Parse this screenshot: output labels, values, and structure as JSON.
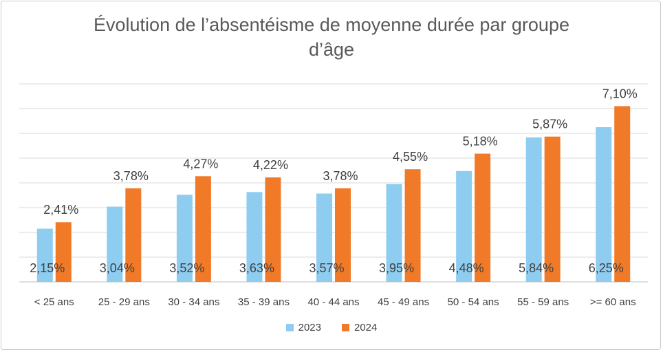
{
  "chart_data": {
    "type": "bar",
    "title_line1": "Évolution de l’absentéisme de moyenne durée par groupe",
    "title_line2": "d’âge",
    "categories": [
      "< 25 ans",
      "25 - 29 ans",
      "30 - 34 ans",
      "35 - 39 ans",
      "40 - 44 ans",
      "45 - 49 ans",
      "50 - 54 ans",
      "55 - 59 ans",
      ">= 60 ans"
    ],
    "series": [
      {
        "name": "2023",
        "color": "#8fcdf0",
        "values": [
          2.15,
          3.04,
          3.52,
          3.63,
          3.57,
          3.95,
          4.48,
          5.84,
          6.25
        ],
        "labels": [
          "2,15%",
          "3,04%",
          "3,52%",
          "3,63%",
          "3,57%",
          "3,95%",
          "4,48%",
          "5,84%",
          "6,25%"
        ]
      },
      {
        "name": "2024",
        "color": "#f07a28",
        "values": [
          2.41,
          3.78,
          4.27,
          4.22,
          3.78,
          4.55,
          5.18,
          5.87,
          7.1
        ],
        "labels": [
          "2,41%",
          "3,78%",
          "4,27%",
          "4,22%",
          "3,78%",
          "4,55%",
          "5,18%",
          "5,87%",
          "7,10%"
        ]
      }
    ],
    "ylim": [
      0,
      8
    ],
    "grid": true,
    "legend_position": "bottom"
  }
}
